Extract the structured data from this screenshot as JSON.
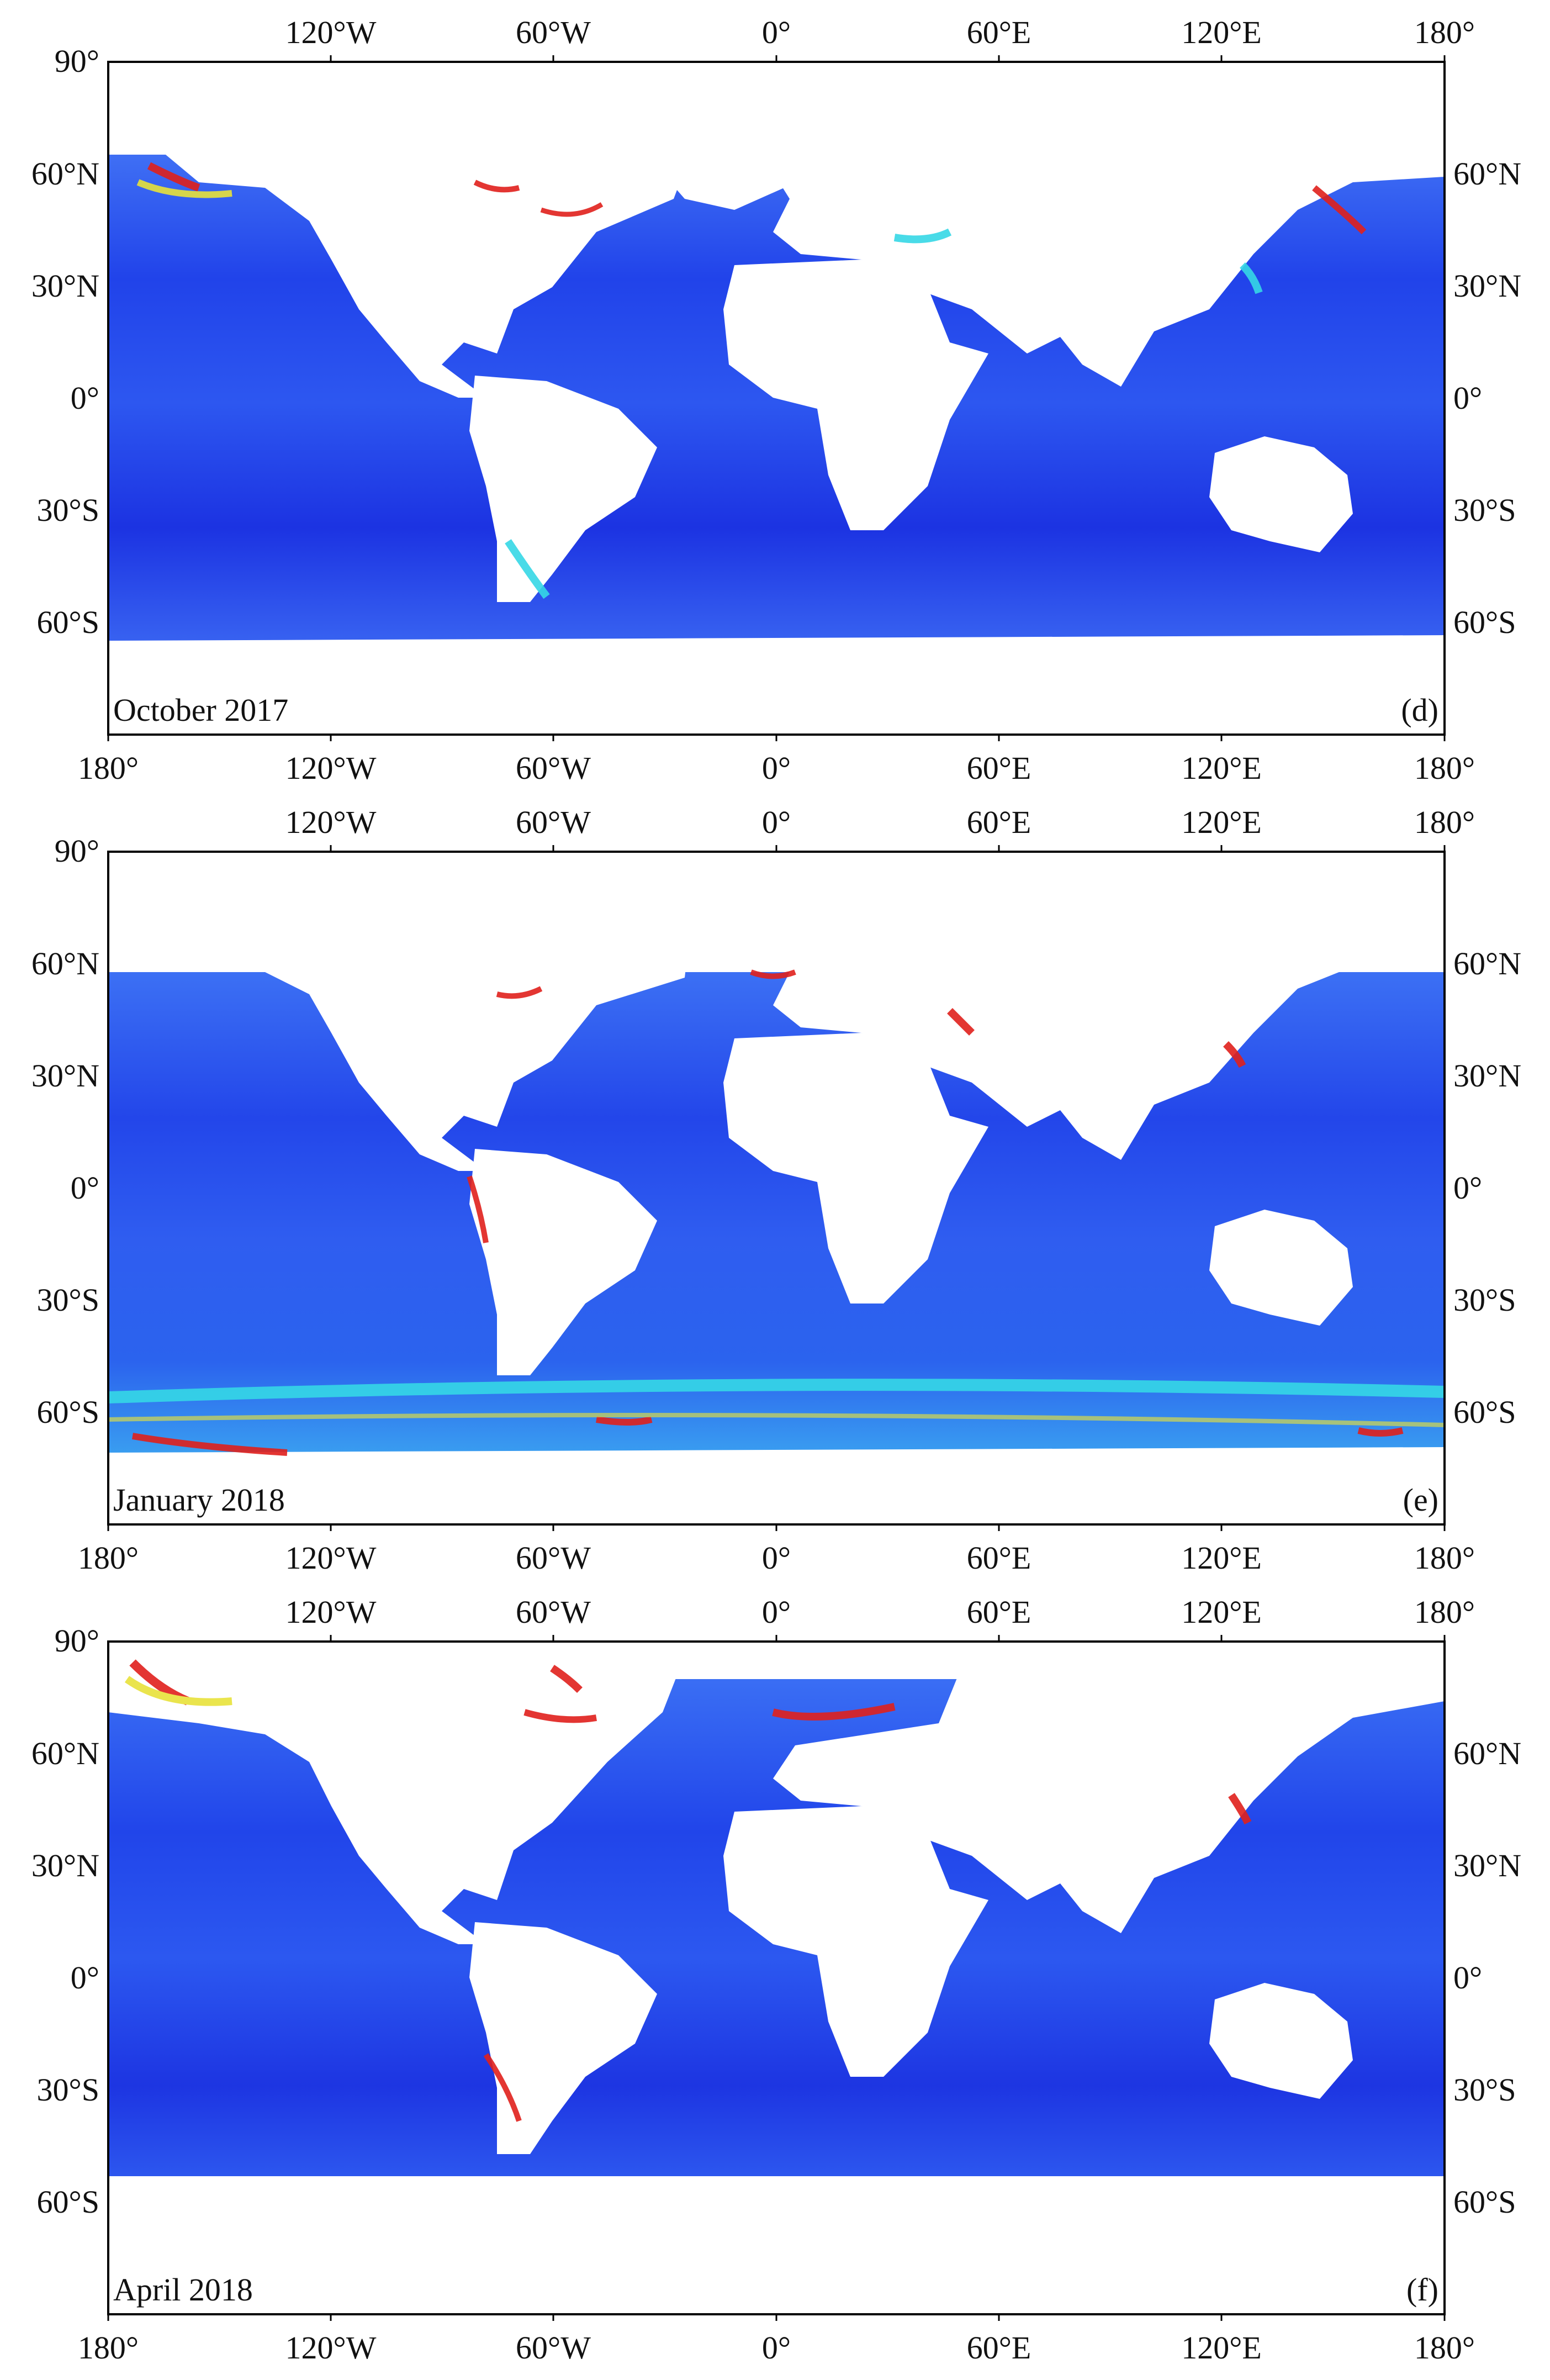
{
  "lon_ticks": [
    "180°",
    "120°W",
    "60°W",
    "0°",
    "60°E",
    "120°E",
    "180°"
  ],
  "lat_ticks_left": [
    "90°",
    "60°N",
    "30°N",
    "0°",
    "30°S",
    "60°S"
  ],
  "lat_ticks_right": [
    "60°N",
    "30°N",
    "0°",
    "30°S",
    "60°S"
  ],
  "colors": {
    "ocean_deep": "#1a2fe0",
    "ocean_mid": "#2f5bf2",
    "ocean_light": "#4a8bf5",
    "coastal_cyan": "#35d7e6",
    "coastal_yellow": "#e8e23a",
    "coastal_red": "#e0201c",
    "land": "#ffffff",
    "frame": "#000000"
  },
  "panels": [
    {
      "id": "d",
      "title": "October 2017",
      "tag": "(d)"
    },
    {
      "id": "e",
      "title": "January 2018",
      "tag": "(e)"
    },
    {
      "id": "f",
      "title": "April 2018",
      "tag": "(f)"
    }
  ]
}
